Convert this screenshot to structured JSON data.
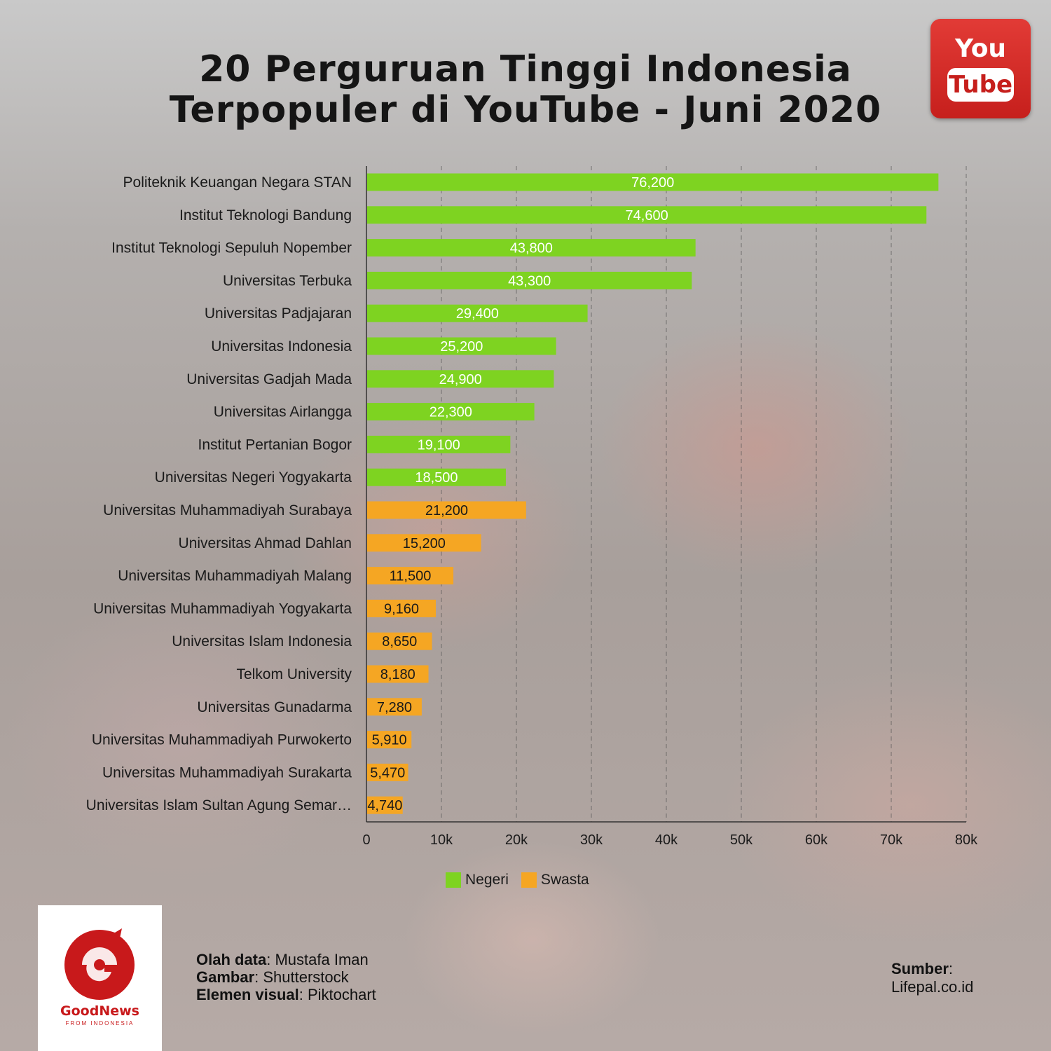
{
  "header": {
    "title_line1": "20 Perguruan Tinggi Indonesia",
    "title_line2": "Terpopuler di YouTube - Juni 2020"
  },
  "youtube_logo": {
    "you": "You",
    "tube": "Tube",
    "icon": "youtube-logo-icon"
  },
  "chart_data": {
    "type": "bar",
    "orientation": "horizontal",
    "title": "20 Perguruan Tinggi Indonesia Terpopuler di YouTube - Juni 2020",
    "categories": [
      "Politeknik Keuangan Negara STAN",
      "Institut Teknologi Bandung",
      "Institut Teknologi Sepuluh Nopember",
      "Universitas Terbuka",
      "Universitas Padjajaran",
      "Universitas Indonesia",
      "Universitas Gadjah Mada",
      "Universitas Airlangga",
      "Institut Pertanian Bogor",
      "Universitas Negeri Yogyakarta",
      "Universitas Muhammadiyah Surabaya",
      "Universitas Ahmad Dahlan",
      "Universitas Muhammadiyah Malang",
      "Universitas Muhammadiyah Yogyakarta",
      "Universitas Islam Indonesia",
      "Telkom University",
      "Universitas Gunadarma",
      "Universitas Muhammadiyah Purwokerto",
      "Universitas Muhammadiyah Surakarta",
      "Universitas Islam Sultan Agung Semar…"
    ],
    "values": [
      76200,
      74600,
      43800,
      43300,
      29400,
      25200,
      24900,
      22300,
      19100,
      18500,
      21200,
      15200,
      11500,
      9160,
      8650,
      8180,
      7280,
      5910,
      5470,
      4740
    ],
    "value_labels": [
      "76,200",
      "74,600",
      "43,800",
      "43,300",
      "29,400",
      "25,200",
      "24,900",
      "22,300",
      "19,100",
      "18,500",
      "21,200",
      "15,200",
      "11,500",
      "9,160",
      "8,650",
      "8,180",
      "7,280",
      "5,910",
      "5,470",
      "4,740"
    ],
    "groups": [
      "Negeri",
      "Negeri",
      "Negeri",
      "Negeri",
      "Negeri",
      "Negeri",
      "Negeri",
      "Negeri",
      "Negeri",
      "Negeri",
      "Swasta",
      "Swasta",
      "Swasta",
      "Swasta",
      "Swasta",
      "Swasta",
      "Swasta",
      "Swasta",
      "Swasta",
      "Swasta"
    ],
    "series": [
      {
        "name": "Negeri",
        "color": "#7ed321"
      },
      {
        "name": "Swasta",
        "color": "#f5a623"
      }
    ],
    "xlim": [
      0,
      80000
    ],
    "x_ticks": [
      0,
      10000,
      20000,
      30000,
      40000,
      50000,
      60000,
      70000,
      80000
    ],
    "x_tick_labels": [
      "0",
      "10k",
      "20k",
      "30k",
      "40k",
      "50k",
      "60k",
      "70k",
      "80k"
    ],
    "grid": "vertical-dashed",
    "legend_position": "bottom"
  },
  "footer": {
    "logo_name": "GoodNews",
    "logo_sub": "FROM INDONESIA",
    "credits": [
      {
        "label": "Olah data",
        "value": ": Mustafa Iman"
      },
      {
        "label": "Gambar",
        "value": ": Shutterstock"
      },
      {
        "label": "Elemen visual",
        "value": ": Piktochart"
      }
    ],
    "source_label": "Sumber",
    "source_colon": ":",
    "source_value": "Lifepal.co.id"
  }
}
